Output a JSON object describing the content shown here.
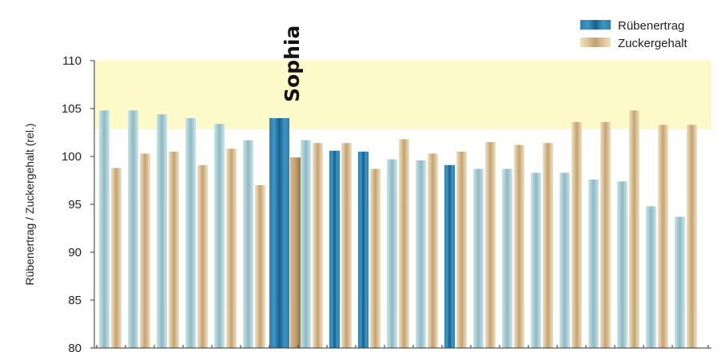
{
  "colors": {
    "plot_band": "#fdf9c8",
    "axis": "#333333",
    "yield_normal": [
      "#cfe6e2",
      "#8fb7c6",
      "#aed0d4"
    ],
    "yield_highlight": [
      "#2c7fb0",
      "#1a5d8c",
      "#3d96c4"
    ],
    "sugar_normal": [
      "#f1e2bb",
      "#c2a172",
      "#dcc49a"
    ],
    "sugar_highlight": [
      "#d6ba86",
      "#9a7848",
      "#c4a373"
    ]
  },
  "chart_data": {
    "type": "bar",
    "ylabel": "Rübenertrag / Zuckergehalt (rel.)",
    "ylim": [
      80,
      110
    ],
    "yticks": [
      "80",
      "85",
      "90",
      "95",
      "100",
      "105",
      "110"
    ],
    "grid": false,
    "legend_position": "top-right",
    "annotation": "Sophia",
    "annotation_group": 6,
    "highlight_yield_groups": [
      6,
      8,
      9,
      12
    ],
    "highlight_sugar_groups": [
      6
    ],
    "series": [
      {
        "name": "Rübenertrag",
        "values": [
          104.8,
          104.8,
          104.4,
          104.0,
          103.4,
          101.7,
          104.0,
          101.7,
          100.6,
          100.5,
          99.7,
          99.6,
          99.1,
          98.7,
          98.7,
          98.3,
          98.3,
          97.6,
          97.4,
          94.8,
          93.7
        ]
      },
      {
        "name": "Zuckergehalt",
        "values": [
          98.8,
          100.3,
          100.5,
          99.1,
          100.8,
          97.0,
          99.9,
          101.4,
          101.4,
          98.7,
          101.8,
          100.3,
          100.5,
          101.5,
          101.2,
          101.4,
          103.6,
          103.6,
          104.8,
          103.3,
          103.3
        ]
      }
    ]
  }
}
